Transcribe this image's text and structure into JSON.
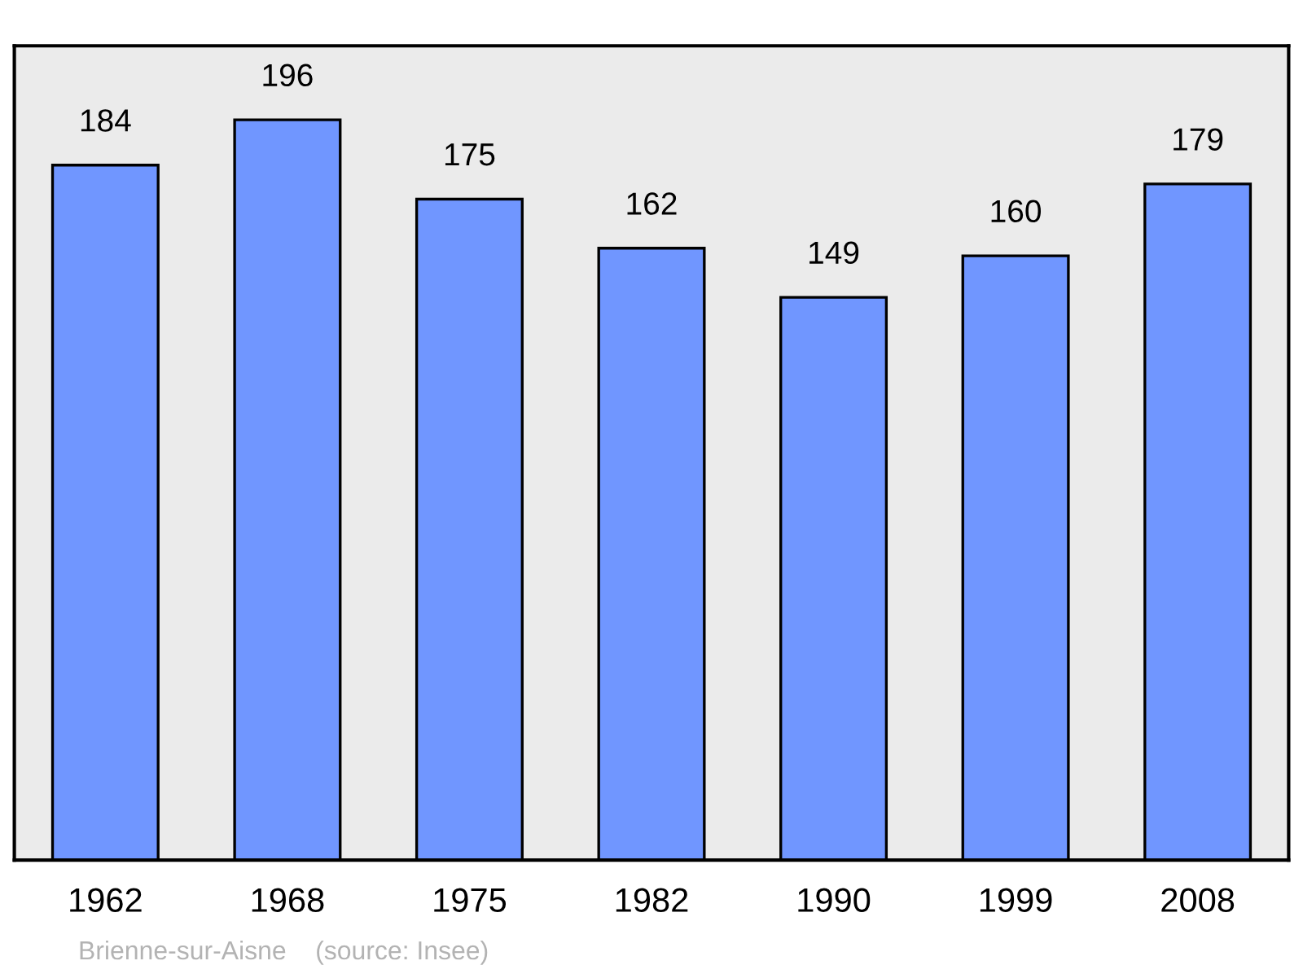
{
  "chart_data": {
    "type": "bar",
    "categories": [
      "1962",
      "1968",
      "1975",
      "1982",
      "1990",
      "1999",
      "2008"
    ],
    "values": [
      184,
      196,
      175,
      162,
      149,
      160,
      179
    ],
    "color": "#7096ff",
    "data_labels": true,
    "grid": false,
    "legend": false,
    "tick_labels": "x",
    "annotations": [
      "Brienne-sur-Aisne    (source: Insee)"
    ]
  }
}
